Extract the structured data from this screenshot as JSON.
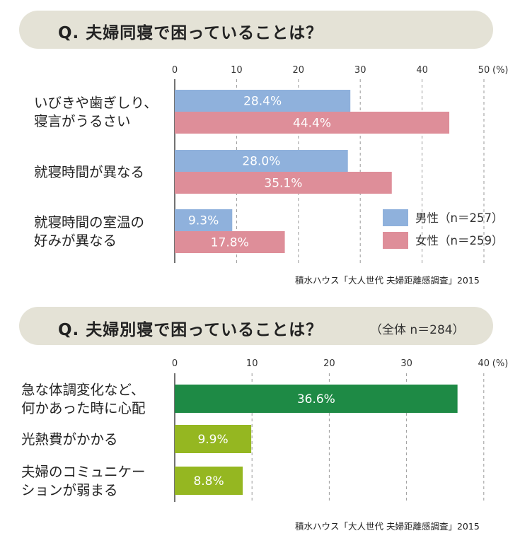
{
  "chart_data": [
    {
      "type": "bar",
      "orientation": "horizontal",
      "title": "Q. 夫婦同寝で困っていることは？",
      "categories": [
        [
          "いびきや歯ぎしり、",
          "寝言がうるさい"
        ],
        [
          "就寝時間が異なる"
        ],
        [
          "就寝時間の室温の",
          "好みが異なる"
        ]
      ],
      "series": [
        {
          "name": "男性（n＝257）",
          "color": "#8fb1dc",
          "values": [
            28.4,
            28.0,
            9.3
          ],
          "labels": [
            "28.4%",
            "28.0%",
            "9.3%"
          ]
        },
        {
          "name": "女性（n＝259）",
          "color": "#de8e99",
          "values": [
            44.4,
            35.1,
            17.8
          ],
          "labels": [
            "44.4%",
            "35.1%",
            "17.8%"
          ]
        }
      ],
      "xlim": [
        0,
        50
      ],
      "ticks": [
        "0",
        "10",
        "20",
        "30",
        "40",
        "50"
      ],
      "unit": "(%)",
      "grid": true,
      "legend_position": "bottom-right",
      "source": "積水ハウス「大人世代 夫婦距離感調査」2015"
    },
    {
      "type": "bar",
      "orientation": "horizontal",
      "title": "Q. 夫婦別寝で困っていることは？",
      "note": "（全体 n＝284）",
      "categories": [
        [
          "急な体調変化など、",
          "何かあった時に心配"
        ],
        [
          "光熱費がかかる"
        ],
        [
          "夫婦のコミュニケー",
          "ションが弱まる"
        ]
      ],
      "series": [
        {
          "values": [
            36.6,
            9.9,
            8.8
          ],
          "labels": [
            "36.6%",
            "9.9%",
            "8.8%"
          ],
          "colors": [
            "#1e8a45",
            "#95b721",
            "#95b721"
          ]
        }
      ],
      "xlim": [
        0,
        40
      ],
      "ticks": [
        "0",
        "10",
        "20",
        "30",
        "40"
      ],
      "unit": "(%)",
      "grid": true,
      "source": "積水ハウス「大人世代 夫婦距離感調査」2015"
    }
  ]
}
